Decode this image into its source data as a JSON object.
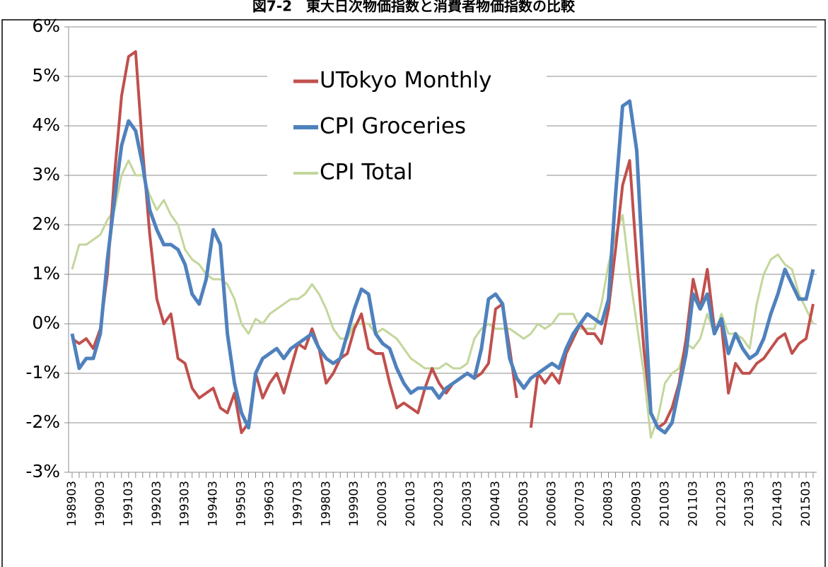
{
  "chart_data": {
    "type": "line",
    "title": "図7-2　東大日次物価指数と消費者物価指数の比較",
    "categories": [
      "198903",
      null,
      null,
      null,
      "199003",
      null,
      null,
      null,
      "199103",
      null,
      null,
      null,
      "199203",
      null,
      null,
      null,
      "199303",
      null,
      null,
      null,
      "199403",
      null,
      null,
      null,
      "199503",
      null,
      null,
      null,
      "199603",
      null,
      null,
      null,
      "199703",
      null,
      null,
      null,
      "199803",
      null,
      null,
      null,
      "199903",
      null,
      null,
      null,
      "200003",
      null,
      null,
      null,
      "200103",
      null,
      null,
      null,
      "200203",
      null,
      null,
      null,
      "200303",
      null,
      null,
      null,
      "200403",
      null,
      null,
      null,
      "200503",
      null,
      null,
      null,
      "200603",
      null,
      null,
      null,
      "200703",
      null,
      null,
      null,
      "200803",
      null,
      null,
      null,
      "200903",
      null,
      null,
      null,
      "201003",
      null,
      null,
      null,
      "201103",
      null,
      null,
      null,
      "201203",
      null,
      null,
      null,
      "201303",
      null,
      null,
      null,
      "201403",
      null,
      null,
      null,
      "201503",
      null
    ],
    "series": [
      {
        "name": "UTokyo Monthly",
        "color": "#c0504d",
        "width": 4,
        "values": [
          -0.3,
          -0.4,
          -0.3,
          -0.5,
          -0.1,
          1.0,
          3.0,
          4.6,
          5.4,
          5.5,
          3.5,
          1.8,
          0.5,
          0.0,
          0.2,
          -0.7,
          -0.8,
          -1.3,
          -1.5,
          -1.4,
          -1.3,
          -1.7,
          -1.8,
          -1.4,
          -2.2,
          -2.0,
          -1.0,
          -1.5,
          -1.2,
          -1.0,
          -1.4,
          -0.9,
          -0.4,
          -0.5,
          -0.1,
          -0.5,
          -1.2,
          -1.0,
          -0.7,
          -0.6,
          -0.1,
          0.2,
          -0.5,
          -0.6,
          -0.6,
          -1.2,
          -1.7,
          -1.6,
          -1.7,
          -1.8,
          -1.3,
          -0.9,
          -1.2,
          -1.4,
          -1.2,
          -1.1,
          -1.0,
          -1.1,
          -1.0,
          -0.8,
          0.3,
          0.4,
          -0.5,
          -1.5,
          null,
          -2.1,
          -1.0,
          -1.2,
          -1.0,
          -1.2,
          -0.6,
          -0.3,
          0.0,
          -0.2,
          -0.2,
          -0.4,
          0.3,
          1.5,
          2.8,
          3.3,
          1.3,
          -0.5,
          -1.8,
          -2.1,
          -2.0,
          -1.7,
          -1.2,
          -0.3,
          0.9,
          0.3,
          1.1,
          -0.1,
          0.0,
          -1.4,
          -0.8,
          -1.0,
          -1.0,
          -0.8,
          -0.7,
          -0.5,
          -0.3,
          -0.2,
          -0.6,
          -0.4,
          -0.3,
          0.4
        ]
      },
      {
        "name": "CPI Groceries",
        "color": "#4f81bd",
        "width": 5,
        "values": [
          -0.2,
          -0.9,
          -0.7,
          -0.7,
          -0.2,
          1.3,
          2.5,
          3.6,
          4.1,
          3.9,
          3.2,
          2.3,
          1.9,
          1.6,
          1.6,
          1.5,
          1.2,
          0.6,
          0.4,
          0.9,
          1.9,
          1.6,
          -0.2,
          -1.2,
          -1.8,
          -2.1,
          -1.0,
          -0.7,
          -0.6,
          -0.5,
          -0.7,
          -0.5,
          -0.4,
          -0.3,
          -0.2,
          -0.5,
          -0.7,
          -0.8,
          -0.7,
          -0.2,
          0.3,
          0.7,
          0.6,
          -0.2,
          -0.4,
          -0.5,
          -0.9,
          -1.2,
          -1.4,
          -1.3,
          -1.3,
          -1.3,
          -1.5,
          -1.3,
          -1.2,
          -1.1,
          -1.0,
          -1.1,
          -0.5,
          0.5,
          0.6,
          0.4,
          -0.7,
          -1.1,
          -1.3,
          -1.1,
          -1.0,
          -0.9,
          -0.8,
          -0.9,
          -0.5,
          -0.2,
          0.0,
          0.2,
          0.1,
          0.0,
          0.5,
          2.6,
          4.4,
          4.5,
          3.5,
          0.8,
          -1.8,
          -2.1,
          -2.2,
          -2.0,
          -1.3,
          -0.6,
          0.6,
          0.3,
          0.6,
          -0.2,
          0.1,
          -0.6,
          -0.2,
          -0.5,
          -0.7,
          -0.6,
          -0.3,
          0.2,
          0.6,
          1.1,
          0.8,
          0.5,
          0.5,
          1.1
        ]
      },
      {
        "name": "CPI Total",
        "color": "#c3d69b",
        "width": 3,
        "values": [
          1.1,
          1.6,
          1.6,
          1.7,
          1.8,
          2.1,
          2.3,
          3.0,
          3.3,
          3.0,
          3.0,
          2.6,
          2.3,
          2.5,
          2.2,
          2.0,
          1.5,
          1.3,
          1.2,
          1.0,
          0.9,
          0.9,
          0.8,
          0.5,
          0.0,
          -0.2,
          0.1,
          0.0,
          0.2,
          0.3,
          0.4,
          0.5,
          0.5,
          0.6,
          0.8,
          0.6,
          0.3,
          -0.1,
          -0.3,
          -0.3,
          0.0,
          0.0,
          0.0,
          -0.2,
          -0.1,
          -0.2,
          -0.3,
          -0.5,
          -0.7,
          -0.8,
          -0.9,
          -0.9,
          -0.9,
          -0.8,
          -0.9,
          -0.9,
          -0.8,
          -0.3,
          -0.1,
          0.0,
          -0.1,
          -0.1,
          -0.1,
          -0.2,
          -0.3,
          -0.2,
          0.0,
          -0.1,
          0.0,
          0.2,
          0.2,
          0.2,
          -0.1,
          -0.1,
          -0.1,
          0.4,
          1.2,
          1.8,
          2.2,
          1.0,
          0.0,
          -1.0,
          -2.3,
          -1.9,
          -1.2,
          -1.0,
          -0.9,
          -0.4,
          -0.5,
          -0.3,
          0.2,
          -0.2,
          0.2,
          -0.2,
          -0.2,
          -0.3,
          -0.5,
          0.4,
          1.0,
          1.3,
          1.4,
          1.2,
          1.1,
          0.6,
          0.3,
          0.0
        ]
      }
    ],
    "ylim": [
      -3,
      6
    ],
    "yticks": [
      {
        "value": -3,
        "label": "-3%"
      },
      {
        "value": -2,
        "label": "-2%"
      },
      {
        "value": -1,
        "label": "-1%"
      },
      {
        "value": 0,
        "label": "0%"
      },
      {
        "value": 1,
        "label": "1%"
      },
      {
        "value": 2,
        "label": "2%"
      },
      {
        "value": 3,
        "label": "3%"
      },
      {
        "value": 4,
        "label": "4%"
      },
      {
        "value": 5,
        "label": "5%"
      },
      {
        "value": 6,
        "label": "6%"
      }
    ],
    "grid": true
  }
}
